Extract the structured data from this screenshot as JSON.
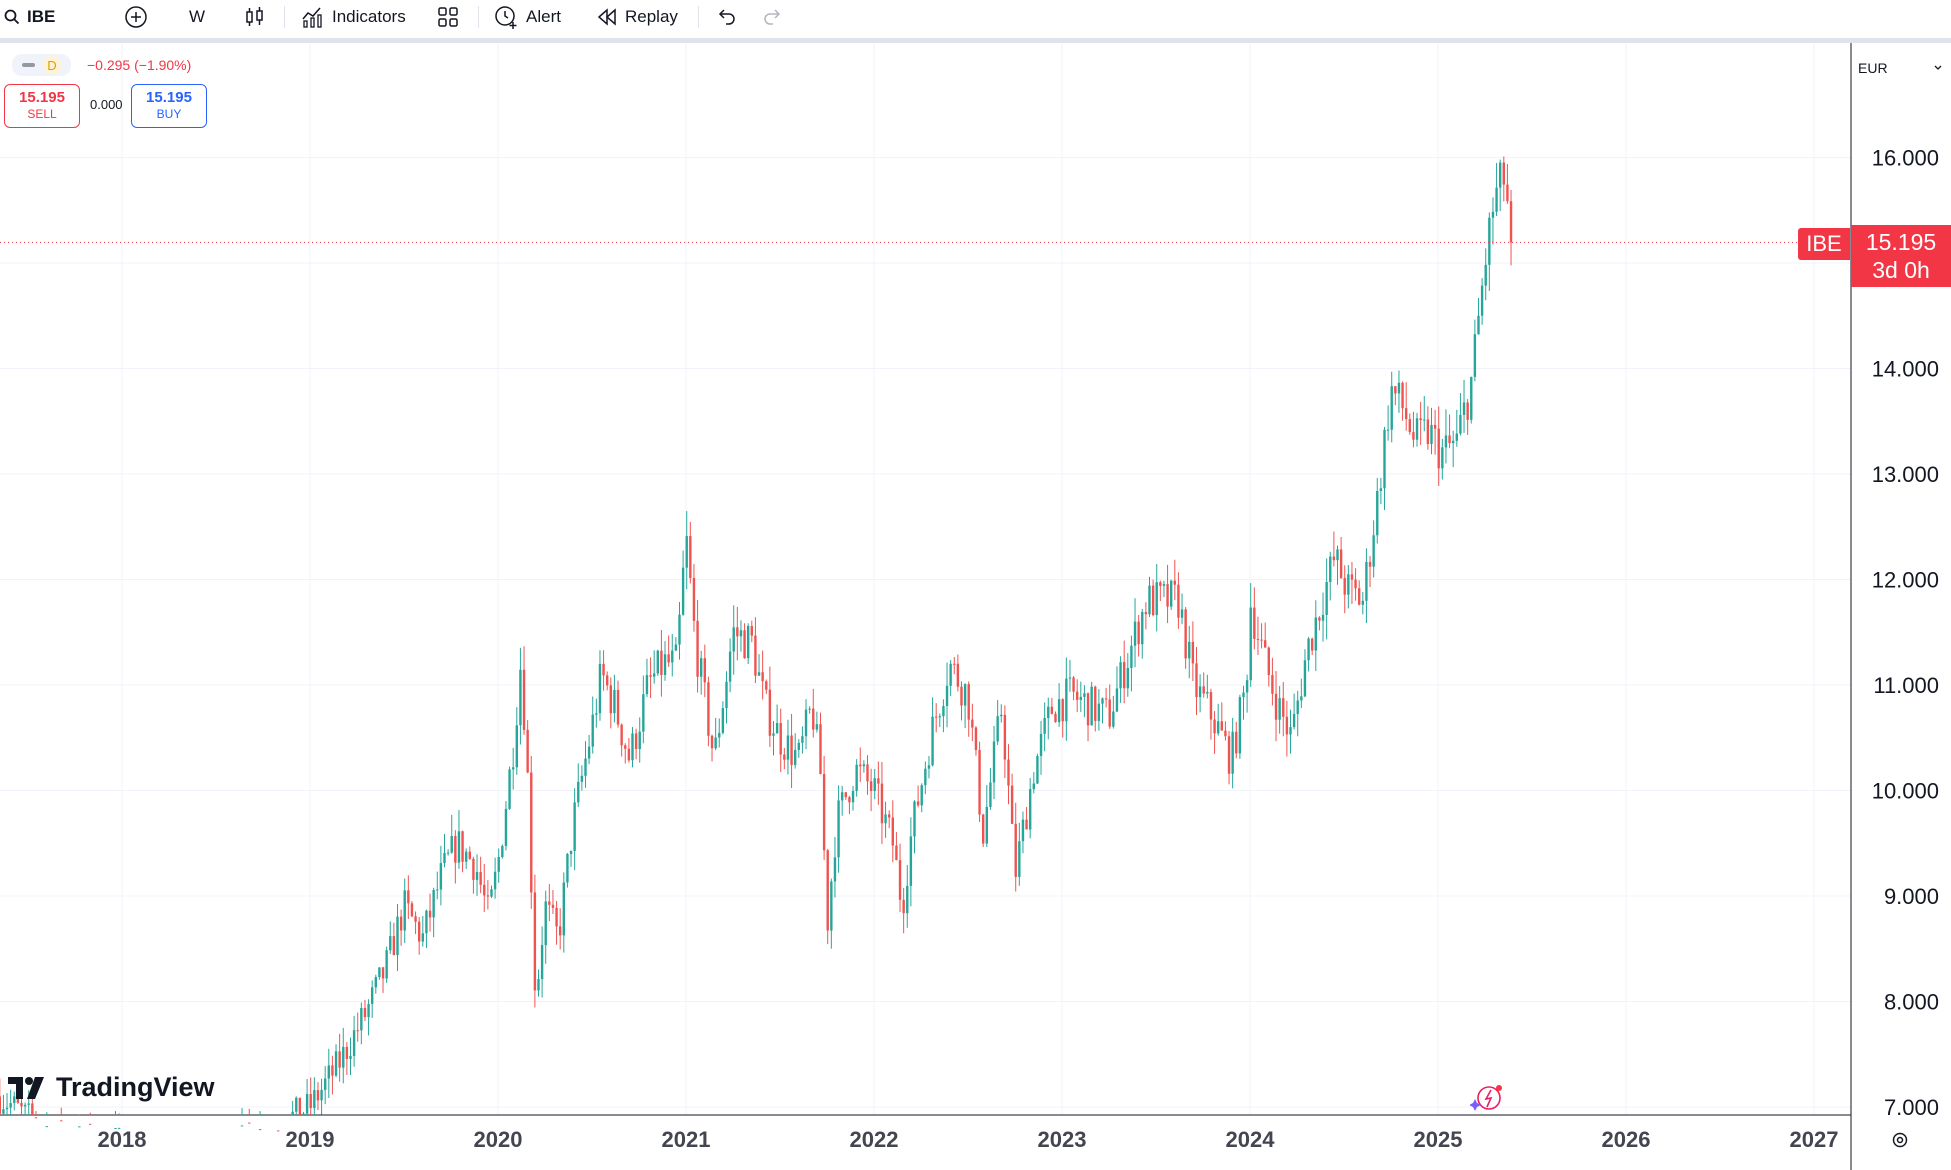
{
  "toolbar": {
    "symbol": "IBE",
    "interval": "W",
    "indicators_label": "Indicators",
    "alert_label": "Alert",
    "replay_label": "Replay",
    "icons": [
      "search-icon",
      "add-symbol-icon",
      "candles-icon",
      "indicators-icon",
      "layouts-icon",
      "alert-icon",
      "replay-icon",
      "undo-icon",
      "redo-icon"
    ]
  },
  "legend": {
    "status": "D",
    "change": "−0.295 (−1.90%)",
    "sell_price": "15.195",
    "sell_label": "SELL",
    "spread": "0.000",
    "buy_price": "15.195",
    "buy_label": "BUY"
  },
  "currency": "EUR",
  "price_badge": {
    "symbol": "IBE",
    "price": "15.195",
    "countdown": "3d 0h"
  },
  "logo_text": "TradingView",
  "colors": {
    "up": "#26a69a",
    "down": "#ef5350",
    "grid": "#f0f3fa",
    "badge": "#f23645"
  },
  "chart_data": {
    "type": "candlestick",
    "symbol": "IBE",
    "interval": "W",
    "currency": "EUR",
    "last_price": 15.195,
    "ylim": [
      7.0,
      16.5
    ],
    "y_ticks": [
      7,
      8,
      9,
      10,
      11,
      12,
      13,
      14,
      15,
      16
    ],
    "y_tick_labels": [
      "7.000",
      "8.000",
      "9.000",
      "10.000",
      "11.000",
      "12.000",
      "13.000",
      "14.000",
      "15.195",
      "16.000"
    ],
    "x_ticks": [
      "2018",
      "2019",
      "2020",
      "2021",
      "2022",
      "2023",
      "2024",
      "2025",
      "2026",
      "2027"
    ],
    "x_range": [
      2017.35,
      2027.4
    ],
    "grid": true,
    "price_path": [
      [
        2017.35,
        7.1
      ],
      [
        2017.5,
        6.9
      ],
      [
        2017.7,
        6.7
      ],
      [
        2017.9,
        6.7
      ],
      [
        2018.2,
        6.6
      ],
      [
        2018.5,
        6.6
      ],
      [
        2018.8,
        6.8
      ],
      [
        2019.0,
        7.0
      ],
      [
        2019.15,
        7.4
      ],
      [
        2019.3,
        7.9
      ],
      [
        2019.4,
        8.3
      ],
      [
        2019.5,
        8.9
      ],
      [
        2019.6,
        8.6
      ],
      [
        2019.7,
        9.2
      ],
      [
        2019.78,
        9.5
      ],
      [
        2019.88,
        9.3
      ],
      [
        2019.95,
        8.8
      ],
      [
        2020.0,
        9.3
      ],
      [
        2020.08,
        10.4
      ],
      [
        2020.12,
        11.2
      ],
      [
        2020.15,
        10.5
      ],
      [
        2020.2,
        8.0
      ],
      [
        2020.25,
        8.9
      ],
      [
        2020.32,
        8.6
      ],
      [
        2020.4,
        9.7
      ],
      [
        2020.5,
        10.6
      ],
      [
        2020.55,
        11.1
      ],
      [
        2020.62,
        10.8
      ],
      [
        2020.7,
        10.3
      ],
      [
        2020.8,
        11.0
      ],
      [
        2020.88,
        11.2
      ],
      [
        2020.95,
        11.2
      ],
      [
        2021.0,
        12.4
      ],
      [
        2021.05,
        11.4
      ],
      [
        2021.15,
        10.3
      ],
      [
        2021.25,
        11.5
      ],
      [
        2021.35,
        11.4
      ],
      [
        2021.42,
        10.8
      ],
      [
        2021.5,
        10.5
      ],
      [
        2021.6,
        10.3
      ],
      [
        2021.67,
        10.8
      ],
      [
        2021.72,
        10.1
      ],
      [
        2021.75,
        8.7
      ],
      [
        2021.8,
        9.7
      ],
      [
        2021.9,
        10.2
      ],
      [
        2022.0,
        10.0
      ],
      [
        2022.1,
        9.5
      ],
      [
        2022.15,
        8.9
      ],
      [
        2022.2,
        9.6
      ],
      [
        2022.3,
        10.5
      ],
      [
        2022.4,
        11.2
      ],
      [
        2022.5,
        10.9
      ],
      [
        2022.58,
        9.6
      ],
      [
        2022.68,
        10.8
      ],
      [
        2022.75,
        9.2
      ],
      [
        2022.85,
        10.2
      ],
      [
        2022.95,
        10.8
      ],
      [
        2023.05,
        10.9
      ],
      [
        2023.15,
        10.8
      ],
      [
        2023.25,
        10.7
      ],
      [
        2023.32,
        11.1
      ],
      [
        2023.45,
        11.8
      ],
      [
        2023.55,
        11.8
      ],
      [
        2023.62,
        11.8
      ],
      [
        2023.7,
        11.0
      ],
      [
        2023.8,
        10.7
      ],
      [
        2023.9,
        10.3
      ],
      [
        2023.98,
        11.0
      ],
      [
        2024.0,
        11.8
      ],
      [
        2024.08,
        11.2
      ],
      [
        2024.15,
        10.8
      ],
      [
        2024.22,
        10.5
      ],
      [
        2024.3,
        11.3
      ],
      [
        2024.38,
        11.8
      ],
      [
        2024.45,
        12.2
      ],
      [
        2024.52,
        11.9
      ],
      [
        2024.6,
        11.8
      ],
      [
        2024.68,
        12.8
      ],
      [
        2024.75,
        13.8
      ],
      [
        2024.82,
        13.6
      ],
      [
        2024.88,
        13.3
      ],
      [
        2024.95,
        13.4
      ],
      [
        2025.02,
        13.2
      ],
      [
        2025.1,
        13.3
      ],
      [
        2025.18,
        13.9
      ],
      [
        2025.25,
        15.0
      ],
      [
        2025.3,
        15.6
      ],
      [
        2025.35,
        15.8
      ],
      [
        2025.4,
        15.195
      ]
    ]
  }
}
